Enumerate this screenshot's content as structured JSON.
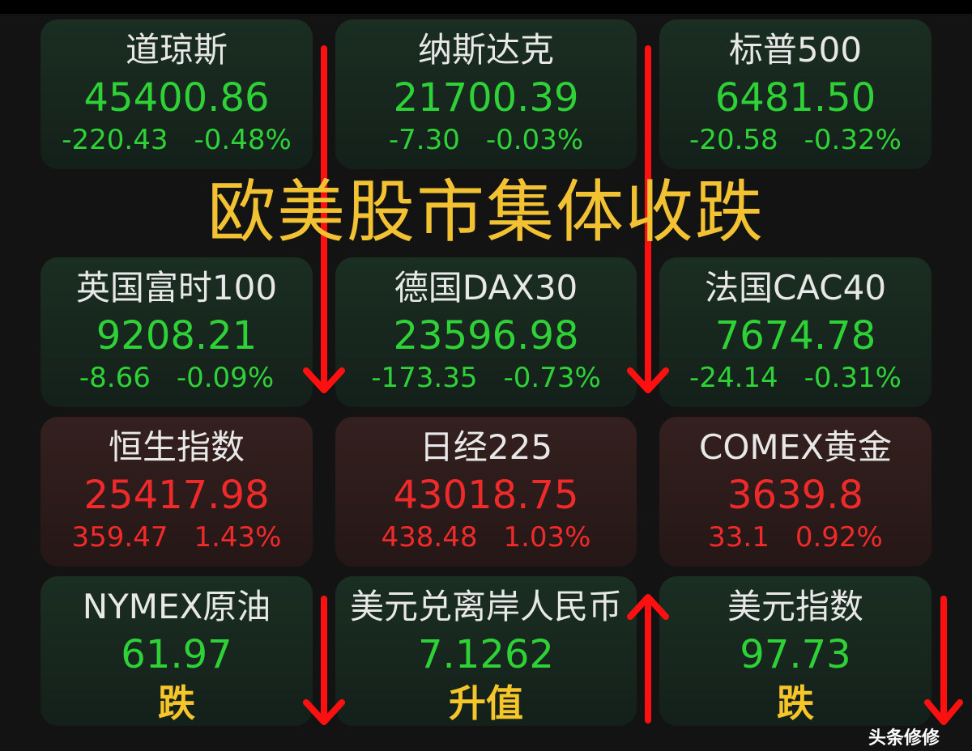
{
  "headline": "欧美股市集体收跌",
  "colors": {
    "up_green": "#2ed136",
    "down_red": "#f02a2a",
    "annotation_yellow": "#f2c232",
    "arrow_red": "#ff1010"
  },
  "cards": [
    {
      "name": "道琼斯",
      "value": "45400.86",
      "change": "-220.43",
      "percent": "-0.48%",
      "trend": "green"
    },
    {
      "name": "纳斯达克",
      "value": "21700.39",
      "change": "-7.30",
      "percent": "-0.03%",
      "trend": "green"
    },
    {
      "name": "标普500",
      "value": "6481.50",
      "change": "-20.58",
      "percent": "-0.32%",
      "trend": "green"
    },
    {
      "name": "英国富时100",
      "value": "9208.21",
      "change": "-8.66",
      "percent": "-0.09%",
      "trend": "green"
    },
    {
      "name": "德国DAX30",
      "value": "23596.98",
      "change": "-173.35",
      "percent": "-0.73%",
      "trend": "green"
    },
    {
      "name": "法国CAC40",
      "value": "7674.78",
      "change": "-24.14",
      "percent": "-0.31%",
      "trend": "green"
    },
    {
      "name": "恒生指数",
      "value": "25417.98",
      "change": "359.47",
      "percent": "1.43%",
      "trend": "red"
    },
    {
      "name": "日经225",
      "value": "43018.75",
      "change": "438.48",
      "percent": "1.03%",
      "trend": "red"
    },
    {
      "name": "COMEX黄金",
      "value": "3639.8",
      "change": "33.1",
      "percent": "0.92%",
      "trend": "red"
    },
    {
      "name": "NYMEX原油",
      "value": "61.97",
      "trend": "green"
    },
    {
      "name": "美元兑离岸人民币",
      "value": "7.1262",
      "trend": "green"
    },
    {
      "name": "美元指数",
      "value": "97.73",
      "trend": "green"
    }
  ],
  "annotations": {
    "oil": "跌",
    "cny": "升值",
    "dxy": "跌"
  },
  "watermark": "头条修修"
}
